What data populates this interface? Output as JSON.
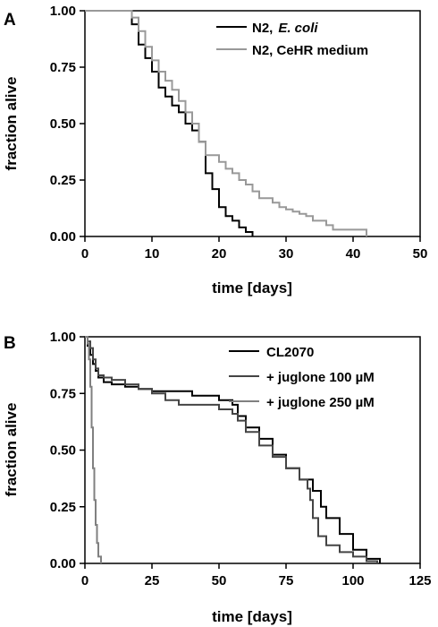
{
  "chart_data": [
    {
      "type": "line",
      "step": true,
      "panel": "A",
      "xlabel": "time [days]",
      "ylabel": "fraction alive",
      "xlim": [
        0,
        50
      ],
      "ylim": [
        0,
        1
      ],
      "xticks": [
        "0",
        "10",
        "20",
        "30",
        "40",
        "50"
      ],
      "yticks": [
        "0.00",
        "0.25",
        "0.50",
        "0.75",
        "1.00"
      ],
      "legend": {
        "placement": "top-right",
        "entries": [
          "N2,",
          "N2, CeHR medium"
        ],
        "italic_suffix": [
          "E. coli",
          ""
        ]
      },
      "series": [
        {
          "name": "N2, E. coli",
          "color": "#000000",
          "x": [
            0,
            6,
            7,
            8,
            9,
            10,
            11,
            12,
            13,
            14,
            15,
            16,
            17,
            18,
            19,
            20,
            21,
            22,
            23,
            24,
            25
          ],
          "y": [
            1.0,
            1.0,
            0.94,
            0.85,
            0.79,
            0.73,
            0.66,
            0.62,
            0.58,
            0.55,
            0.5,
            0.47,
            0.42,
            0.28,
            0.21,
            0.13,
            0.09,
            0.07,
            0.04,
            0.02,
            0.0
          ]
        },
        {
          "name": "N2, CeHR medium",
          "color": "#999999",
          "x": [
            0,
            6,
            7,
            8,
            9,
            10,
            11,
            12,
            13,
            14,
            15,
            16,
            17,
            18,
            20,
            21,
            22,
            23,
            24,
            25,
            26,
            28,
            29,
            30,
            31,
            32,
            33,
            34,
            36,
            37,
            42
          ],
          "y": [
            1.0,
            1.0,
            0.97,
            0.91,
            0.84,
            0.78,
            0.73,
            0.69,
            0.65,
            0.6,
            0.55,
            0.5,
            0.42,
            0.36,
            0.33,
            0.3,
            0.28,
            0.25,
            0.23,
            0.2,
            0.17,
            0.15,
            0.13,
            0.12,
            0.11,
            0.1,
            0.09,
            0.07,
            0.05,
            0.03,
            0.0
          ]
        }
      ]
    },
    {
      "type": "line",
      "step": true,
      "panel": "B",
      "xlabel": "time [days]",
      "ylabel": "fraction alive",
      "xlim": [
        0,
        125
      ],
      "ylim": [
        0,
        1
      ],
      "xticks": [
        "0",
        "25",
        "50",
        "75",
        "100",
        "125"
      ],
      "yticks": [
        "0.00",
        "0.25",
        "0.50",
        "0.75",
        "1.00"
      ],
      "legend": {
        "placement": "top-right",
        "entries": [
          "CL2070",
          "+ juglone 100 µM",
          "+ juglone 250 µM"
        ]
      },
      "series": [
        {
          "name": "CL2070",
          "color": "#000000",
          "x": [
            0,
            1,
            2,
            3,
            4,
            5,
            7,
            10,
            15,
            20,
            25,
            40,
            50,
            55,
            57,
            60,
            65,
            70,
            75,
            80,
            85,
            88,
            90,
            95,
            100,
            105,
            110
          ],
          "y": [
            1.0,
            0.96,
            0.92,
            0.88,
            0.85,
            0.82,
            0.8,
            0.79,
            0.78,
            0.77,
            0.76,
            0.74,
            0.72,
            0.7,
            0.65,
            0.6,
            0.55,
            0.48,
            0.42,
            0.37,
            0.32,
            0.25,
            0.2,
            0.13,
            0.06,
            0.02,
            0.0
          ]
        },
        {
          "name": "+ juglone 100 µM",
          "color": "#444444",
          "x": [
            0,
            1,
            2,
            3,
            4,
            5,
            7,
            10,
            15,
            20,
            25,
            30,
            35,
            50,
            55,
            57,
            60,
            65,
            70,
            75,
            80,
            83,
            84,
            85,
            87,
            90,
            95,
            100,
            105,
            109
          ],
          "y": [
            1.0,
            0.98,
            0.95,
            0.9,
            0.86,
            0.83,
            0.82,
            0.81,
            0.79,
            0.77,
            0.75,
            0.72,
            0.7,
            0.68,
            0.66,
            0.63,
            0.58,
            0.52,
            0.47,
            0.42,
            0.37,
            0.33,
            0.28,
            0.2,
            0.12,
            0.08,
            0.05,
            0.03,
            0.01,
            0.0
          ]
        },
        {
          "name": "+ juglone 250 µM",
          "color": "#808080",
          "x": [
            0,
            1,
            1.5,
            2,
            2.5,
            3,
            3.5,
            4,
            4.5,
            5,
            6
          ],
          "y": [
            1.0,
            0.97,
            0.9,
            0.78,
            0.6,
            0.42,
            0.28,
            0.17,
            0.09,
            0.03,
            0.0
          ]
        }
      ]
    }
  ]
}
